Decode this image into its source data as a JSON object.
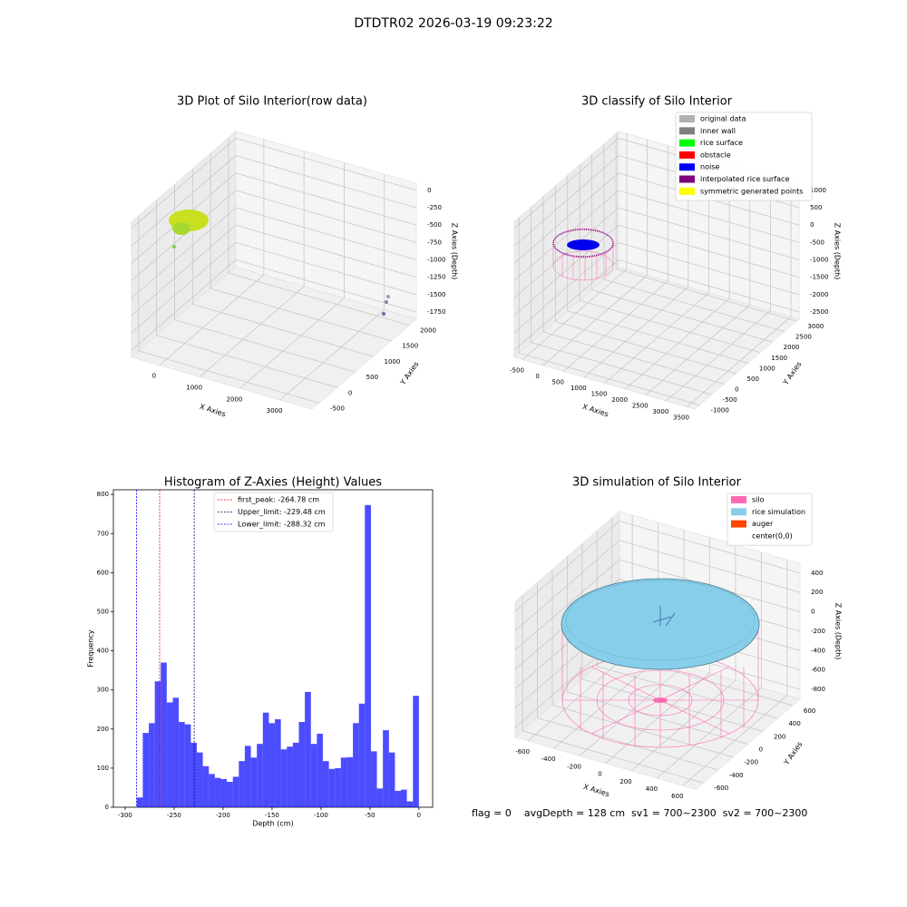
{
  "title": "DTDTR02 2026-03-19 09:23:22",
  "chart_data": [
    {
      "type": "scatter3d",
      "title": "3D Plot of Silo Interior(row data)",
      "xlabel": "X Axies",
      "ylabel": "Y Axies",
      "zlabel": "Z Axies (Depth)",
      "xlim": [
        -700,
        3800
      ],
      "xticks": [
        0,
        1000,
        2000,
        3000
      ],
      "ylim": [
        -700,
        2200
      ],
      "yticks": [
        -500,
        0,
        500,
        1000,
        1500,
        2000
      ],
      "zlim": [
        -1850,
        100
      ],
      "zticks": [
        0,
        -250,
        -500,
        -750,
        -1000,
        -1250,
        -1500,
        -1750
      ]
    },
    {
      "type": "scatter3d",
      "title": "3D classify of Silo Interior",
      "xlabel": "X Axies",
      "ylabel": "Y Axies",
      "zlabel": "Z Axies (Depth)",
      "xlim": [
        -700,
        3700
      ],
      "xticks": [
        -500,
        0,
        500,
        1000,
        1500,
        2000,
        2500,
        3000,
        3500
      ],
      "ylim": [
        -1200,
        3100
      ],
      "yticks": [
        -1000,
        -500,
        0,
        500,
        1000,
        1500,
        2000,
        2500,
        3000
      ],
      "zlim": [
        -2700,
        1200
      ],
      "zticks": [
        1000,
        500,
        0,
        -500,
        -1000,
        -1500,
        -2000,
        -2500
      ],
      "legend": [
        {
          "name": "original data",
          "color": "#b0b0b0"
        },
        {
          "name": "inner wall",
          "color": "#808080"
        },
        {
          "name": "rice surface",
          "color": "#00ff00"
        },
        {
          "name": "obstacle",
          "color": "#ff0000"
        },
        {
          "name": "noise",
          "color": "#0000ff"
        },
        {
          "name": "interpolated rice surface",
          "color": "#800080"
        },
        {
          "name": "symmetric generated points",
          "color": "#ffff00"
        }
      ]
    },
    {
      "type": "histogram",
      "title": "Histogram of Z-Axies (Height) Values",
      "xlabel": "Depth (cm)",
      "ylabel": "Frequency",
      "color": "#0000ff",
      "xlim": [
        -312,
        14
      ],
      "xticks": [
        -300,
        -250,
        -200,
        -150,
        -100,
        -50,
        0
      ],
      "ylim": [
        0,
        812
      ],
      "yticks": [
        0,
        100,
        200,
        300,
        400,
        500,
        600,
        700,
        800
      ],
      "bins": [
        -288.1,
        -282.0,
        -275.8,
        -269.7,
        -263.6,
        -257.5,
        -251.3,
        -245.2,
        -239.1,
        -232.9,
        -226.8,
        -220.7,
        -214.5,
        -208.4,
        -202.3,
        -196.2,
        -190.0,
        -183.9,
        -177.8,
        -171.6,
        -165.5,
        -159.4,
        -153.2,
        -147.1,
        -141.0,
        -134.9,
        -128.7,
        -122.6,
        -116.5,
        -110.3,
        -104.2,
        -98.1,
        -91.9,
        -85.8,
        -79.7,
        -73.6,
        -67.4,
        -61.3,
        -55.2,
        -49.0,
        -42.9,
        -36.8,
        -30.6,
        -24.5,
        -18.4,
        -12.3,
        -6.1,
        0.0
      ],
      "counts": [
        25,
        190,
        215,
        322,
        370,
        268,
        280,
        218,
        212,
        165,
        140,
        105,
        85,
        75,
        72,
        65,
        78,
        118,
        157,
        127,
        162,
        242,
        215,
        225,
        148,
        155,
        165,
        218,
        295,
        162,
        188,
        118,
        98,
        100,
        127,
        128,
        215,
        265,
        773,
        143,
        48,
        197,
        140,
        42,
        45,
        15,
        285
      ],
      "lines": [
        {
          "name": "first_peak: -264.78 cm",
          "value": -264.78,
          "color": "#ff0000"
        },
        {
          "name": "Upper_limit: -229.48 cm",
          "value": -229.48,
          "color": "#000080"
        },
        {
          "name": "Lower_limit: -288.32 cm",
          "value": -288.32,
          "color": "#0000ff"
        }
      ]
    },
    {
      "type": "surface3d",
      "title": "3D simulation of Silo Interior",
      "xlabel": "X Axies",
      "ylabel": "Y Axies",
      "zlabel": "Z Axies (Depth)",
      "xlim": [
        -700,
        700
      ],
      "xticks": [
        -600,
        -400,
        -200,
        0,
        200,
        400,
        600
      ],
      "ylim": [
        -700,
        700
      ],
      "yticks": [
        -600,
        -400,
        -200,
        0,
        200,
        400,
        600
      ],
      "zlim": [
        -900,
        500
      ],
      "zticks": [
        400,
        200,
        0,
        -200,
        -400,
        -600,
        -800
      ],
      "legend": [
        {
          "name": "silo",
          "color": "#ff69b4"
        },
        {
          "name": "rice simulation",
          "color": "#87ceeb"
        },
        {
          "name": "auger",
          "color": "#ff4500"
        },
        {
          "name": "center(0,0)",
          "color": "#ffffff"
        }
      ],
      "annotation": "flag = 0    avgDepth = 128 cm  sv1 = 700~2300  sv2 = 700~2300"
    }
  ]
}
